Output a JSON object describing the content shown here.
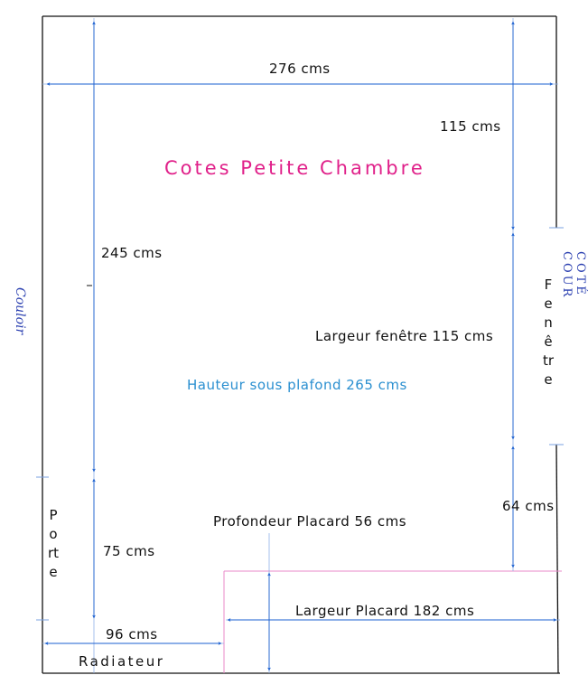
{
  "title": "Cotes Petite Chambre",
  "dimensions": {
    "width_total": "276 cms",
    "wall_top_right": "115 cms",
    "height_left": "245 cms",
    "window_width": "Largeur fenêtre 115 cms",
    "ceiling_height": "Hauteur sous plafond 265 cms",
    "bottom_right": "64 cms",
    "closet_depth": "Profondeur Placard 56 cms",
    "door_height": "75 cms",
    "closet_width": "Largeur Placard 182 cms",
    "radiator_width": "96 cms"
  },
  "labels": {
    "door": "Porte",
    "window": "Fenêtre",
    "radiator": "Radiateur"
  },
  "handwritten": {
    "left": "Couloir",
    "right": "COTÉ COUR"
  },
  "colors": {
    "arrow": "#1a5fd0",
    "guide": "#8fb0e8",
    "title": "#e0218a",
    "ceiling_text": "#2a8fd0",
    "closet": "#e88ac8",
    "handwriting": "#2a3fb0"
  }
}
